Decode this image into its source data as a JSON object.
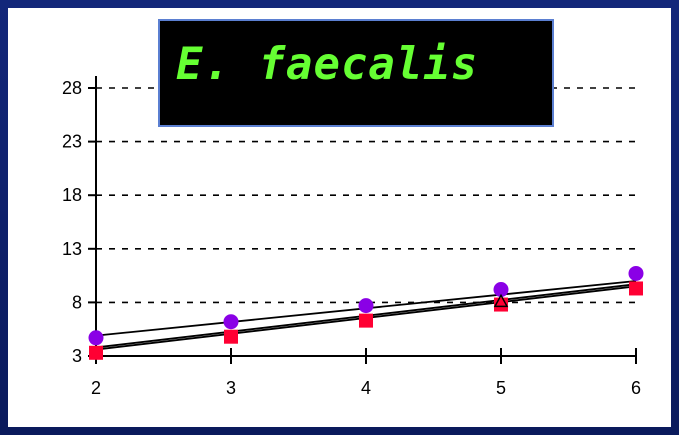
{
  "chart_data": {
    "type": "scatter",
    "title": "E. faecalis",
    "xlabel": "",
    "ylabel": "",
    "xlim": [
      2,
      6
    ],
    "ylim": [
      3,
      28
    ],
    "x_ticks": [
      "2",
      "3",
      "4",
      "5",
      "6"
    ],
    "y_ticks": [
      "3",
      "8",
      "13",
      "18",
      "23",
      "28"
    ],
    "grid": "horizontal dashed",
    "series": [
      {
        "marker": "circle",
        "color": "#8a00e6",
        "x": [
          2,
          3,
          4,
          5,
          6
        ],
        "y": [
          4.7,
          6.2,
          7.7,
          9.2,
          10.7
        ],
        "fit": [
          4.9,
          10.0
        ]
      },
      {
        "marker": "square",
        "color": "#ff0033",
        "x": [
          2,
          3,
          4,
          5,
          6
        ],
        "y": [
          3.3,
          4.8,
          6.3,
          7.8,
          9.3
        ],
        "fit": [
          3.8,
          9.7
        ]
      },
      {
        "marker": "triangle",
        "color": "#000000",
        "x": [
          5
        ],
        "y": [
          8.1
        ],
        "fit": [
          3.6,
          9.5
        ]
      }
    ]
  }
}
